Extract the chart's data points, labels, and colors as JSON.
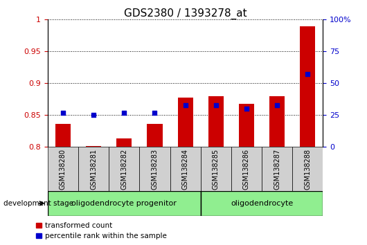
{
  "title": "GDS2380 / 1393278_at",
  "samples": [
    "GSM138280",
    "GSM138281",
    "GSM138282",
    "GSM138283",
    "GSM138284",
    "GSM138285",
    "GSM138286",
    "GSM138287",
    "GSM138288"
  ],
  "transformed_count": [
    0.836,
    0.801,
    0.813,
    0.836,
    0.878,
    0.88,
    0.868,
    0.88,
    0.99
  ],
  "percentile_rank": [
    27,
    25,
    27,
    27,
    33,
    33,
    30,
    33,
    57
  ],
  "ylim_left": [
    0.8,
    1.0
  ],
  "ylim_right": [
    0,
    100
  ],
  "yticks_left": [
    0.8,
    0.85,
    0.9,
    0.95,
    1.0
  ],
  "yticks_right": [
    0,
    25,
    50,
    75,
    100
  ],
  "groups": [
    {
      "label": "oligodendrocyte progenitor",
      "start": 0,
      "end": 4,
      "color": "#90EE90"
    },
    {
      "label": "oligodendrocyte",
      "start": 5,
      "end": 8,
      "color": "#90EE90"
    }
  ],
  "bar_color": "#CC0000",
  "dot_color": "#0000CC",
  "bar_width": 0.5,
  "dot_size": 25,
  "legend_labels": [
    "transformed count",
    "percentile rank within the sample"
  ],
  "dev_stage_label": "development stage",
  "left_tick_color": "#CC0000",
  "right_tick_color": "#0000CC",
  "title_fontsize": 11,
  "axis_fontsize": 8,
  "label_fontsize": 7,
  "stage_fontsize": 8
}
